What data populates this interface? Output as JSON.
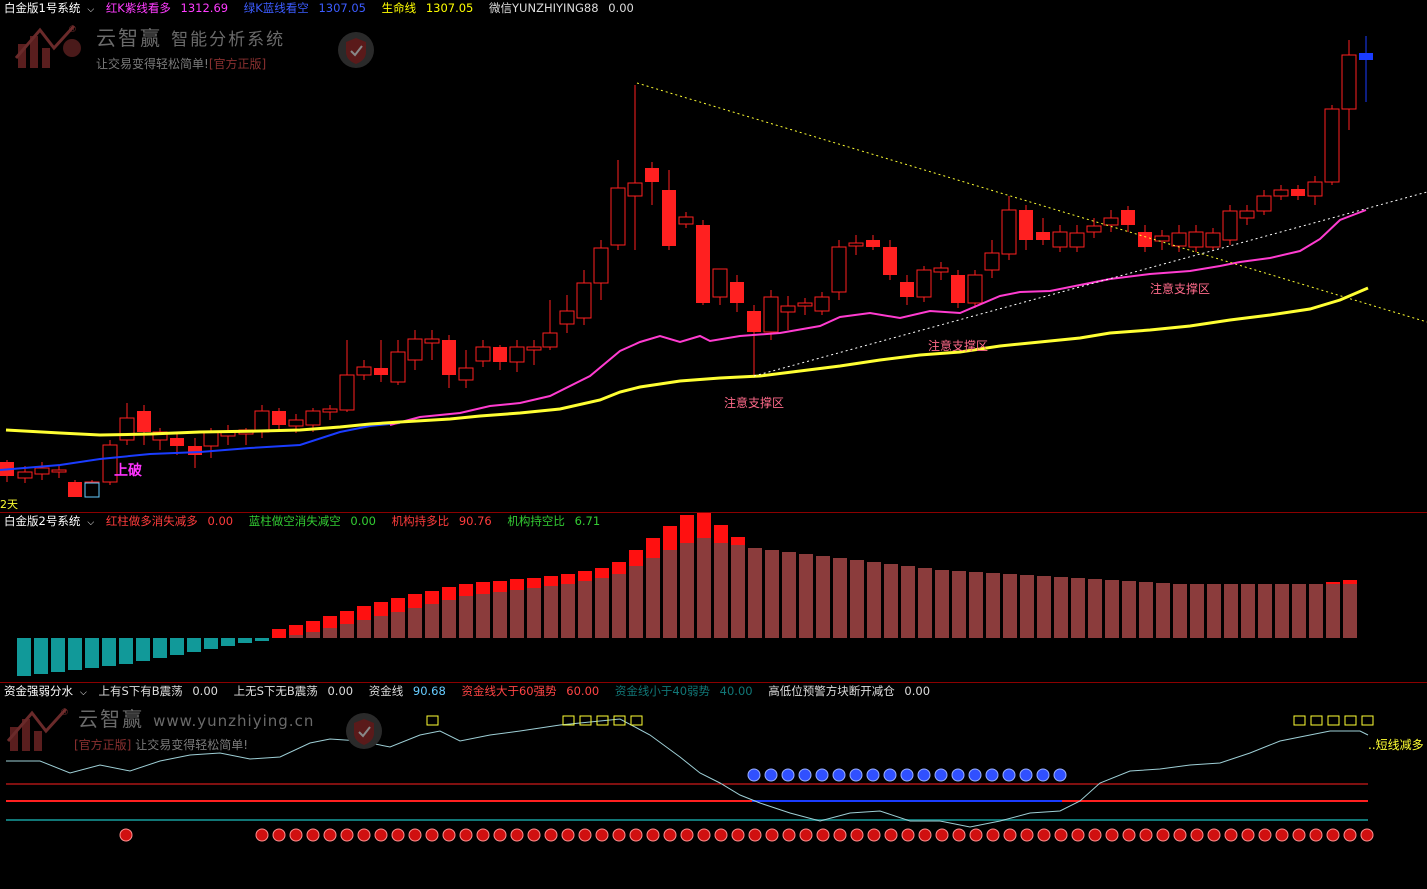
{
  "panel1": {
    "system_name": "白金版1号系统",
    "items": [
      {
        "label": "红K紫线看多",
        "value": "1312.69",
        "color": "#ff3cff"
      },
      {
        "label": "绿K蓝线看空",
        "value": "1307.05",
        "color": "#3c5cff"
      },
      {
        "label": "生命线",
        "value": "1307.05",
        "color": "#ffff00"
      },
      {
        "label": "微信YUNZHIYING88",
        "value": "0.00",
        "color": "#dddddd"
      }
    ],
    "annotations": {
      "support_1": "注意支撑区",
      "support_2": "注意支撑区",
      "support_3": "注意支撑区",
      "breakout": "上破",
      "days": "2天"
    },
    "watermark": {
      "brand": "云智赢",
      "title": "智能分析系统",
      "slogan": "让交易变得轻松简单!",
      "tag": "[官方正版]"
    }
  },
  "panel2": {
    "system_name": "白金版2号系统",
    "items": [
      {
        "label": "红柱做多消失减多",
        "value": "0.00",
        "color": "#ff3c3c"
      },
      {
        "label": "蓝柱做空消失减空",
        "value": "0.00",
        "color": "#33cc33"
      },
      {
        "label": "机构持多比",
        "value": "90.76",
        "color": "#ff3c3c"
      },
      {
        "label": "机构持空比",
        "value": "6.71",
        "color": "#33cc33"
      }
    ]
  },
  "panel3": {
    "system_name": "资金强弱分水",
    "items": [
      {
        "label": "上有S下有B震荡",
        "value": "0.00",
        "color": "#dddddd"
      },
      {
        "label": "上无S下无B震荡",
        "value": "0.00",
        "color": "#dddddd"
      },
      {
        "label": "资金线",
        "value": "90.68",
        "color": "#dddddd",
        "value_color": "#66ccff"
      },
      {
        "label": "资金线大于60强势",
        "value": "60.00",
        "color": "#ff4444"
      },
      {
        "label": "资金线小于40弱势",
        "value": "40.00",
        "color": "#117777"
      },
      {
        "label": "高低位预警方块断开减仓",
        "value": "0.00",
        "color": "#dddddd"
      }
    ],
    "signal_label": "短线减多",
    "watermark": {
      "brand": "云智赢",
      "url": "www.yunzhiying.cn",
      "tag": "[官方正版]",
      "slogan": "让交易变得轻松简单!"
    }
  },
  "colors": {
    "up": "#ff0000",
    "down": "#ff0000",
    "hollow": "#ff3333",
    "magenta": "#ff3cd0",
    "yellow": "#ffff33",
    "blue": "#1a3cff"
  }
}
